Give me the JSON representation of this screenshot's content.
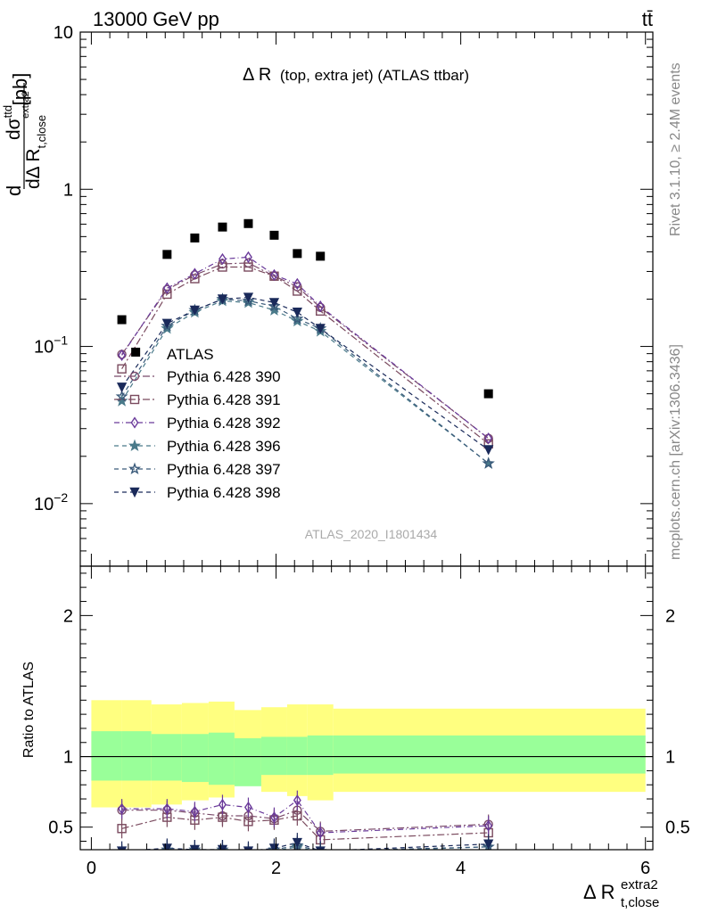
{
  "header": {
    "beam": "13000 GeV pp",
    "process": "tt̄",
    "side_rivet": "Rivet 3.1.10, ≥ 2.4M events",
    "side_mcplots": "mcplots.cern.ch [arXiv:1306.3436]",
    "analysis_id": "ATLAS_2020_I1801434"
  },
  "labels": {
    "title_main": "Δ R",
    "title_paren": "(top, extra jet) (ATLAS ttbar)",
    "ylabel_main": "dσ",
    "ylabel_main_sup": "ttd",
    "ylabel_den": "dΔ R",
    "ylabel_den_sub": "t,close",
    "ylabel_den_sup": "extra2",
    "ylabel_pre": "d",
    "ylabel_unit": "[pb]",
    "ratio_ylabel": "Ratio to ATLAS",
    "xlabel_main": "Δ R",
    "xlabel_sup": "extra2",
    "xlabel_sub": "t,close"
  },
  "ticks": {
    "top_y": [
      "10",
      "1",
      "10",
      "10"
    ],
    "top_y_exp": [
      "",
      "",
      "−1",
      "−2"
    ],
    "ratio_y": [
      "2",
      "1",
      "0.5"
    ],
    "x": [
      "0",
      "2",
      "4",
      "6"
    ]
  },
  "colors": {
    "data": "#000000",
    "band_inner": "#99ff99",
    "band_outer": "#ffff80",
    "s390": "#7a4a6a",
    "s391": "#7a4a5e",
    "s392": "#6a3a9a",
    "s396": "#4a7a8a",
    "s397": "#3a5a7a",
    "s398": "#1a2a5a"
  },
  "chart_data": {
    "type": "scatter",
    "x_scale": "linear",
    "y_scale": "log",
    "xlim": [
      -0.12,
      6.08
    ],
    "ylim": [
      0.004,
      10
    ],
    "ratio_ylim": [
      0.34,
      2.35
    ],
    "grid": false,
    "legend_position": "middle-left",
    "x": [
      0.33,
      0.82,
      1.12,
      1.42,
      1.7,
      1.98,
      2.23,
      2.48,
      4.3
    ],
    "data": {
      "name": "ATLAS",
      "x": [
        0.33,
        0.48,
        0.82,
        1.12,
        1.42,
        1.7,
        1.98,
        2.23,
        2.48,
        4.3
      ],
      "values": [
        0.148,
        0.092,
        0.385,
        0.49,
        0.575,
        0.605,
        0.51,
        0.39,
        0.375,
        0.05
      ]
    },
    "series": [
      {
        "name": "Pythia 6.428 390",
        "marker": "circle-open",
        "dash": "8,3,2,3",
        "color_key": "s390",
        "values": [
          0.089,
          0.23,
          0.285,
          0.335,
          0.34,
          0.28,
          0.24,
          0.177,
          0.026
        ],
        "ratio": [
          0.62,
          0.62,
          0.6,
          0.58,
          0.58,
          0.56,
          0.62,
          0.47,
          0.52
        ]
      },
      {
        "name": "Pythia 6.428 391",
        "marker": "square-open",
        "dash": "8,3,2,3",
        "color_key": "s391",
        "values": [
          0.072,
          0.215,
          0.27,
          0.32,
          0.32,
          0.28,
          0.225,
          0.168,
          0.024
        ],
        "ratio": [
          0.49,
          0.57,
          0.55,
          0.57,
          0.54,
          0.55,
          0.58,
          0.41,
          0.46
        ]
      },
      {
        "name": "Pythia 6.428 392",
        "marker": "diamond-open",
        "dash": "6,3,1,3",
        "color_key": "s392",
        "values": [
          0.088,
          0.235,
          0.29,
          0.36,
          0.37,
          0.285,
          0.25,
          0.18,
          0.026
        ],
        "ratio": [
          0.63,
          0.63,
          0.61,
          0.66,
          0.64,
          0.57,
          0.69,
          0.46,
          0.51
        ]
      },
      {
        "name": "Pythia 6.428 396",
        "marker": "star-filled",
        "dash": "5,4",
        "color_key": "s396",
        "values": [
          0.045,
          0.13,
          0.165,
          0.195,
          0.19,
          0.17,
          0.145,
          0.125,
          0.018
        ],
        "ratio": [
          0.3,
          0.33,
          0.33,
          0.33,
          0.31,
          0.33,
          0.36,
          0.32,
          0.36
        ]
      },
      {
        "name": "Pythia 6.428 397",
        "marker": "star-open",
        "dash": "5,4",
        "color_key": "s397",
        "values": [
          0.048,
          0.135,
          0.17,
          0.2,
          0.195,
          0.18,
          0.15,
          0.13,
          0.018
        ],
        "ratio": [
          0.31,
          0.34,
          0.34,
          0.34,
          0.32,
          0.34,
          0.37,
          0.33,
          0.36
        ]
      },
      {
        "name": "Pythia 6.428 398",
        "marker": "triangle-down-filled",
        "dash": "5,4",
        "color_key": "s398",
        "values": [
          0.055,
          0.14,
          0.17,
          0.2,
          0.205,
          0.19,
          0.165,
          0.13,
          0.022
        ],
        "ratio": [
          0.33,
          0.35,
          0.34,
          0.34,
          0.33,
          0.35,
          0.39,
          0.33,
          0.38
        ]
      }
    ],
    "uncertainty_bands": {
      "edges": [
        0.0,
        0.33,
        0.65,
        0.98,
        1.27,
        1.55,
        1.84,
        2.12,
        2.34,
        2.62,
        6.0
      ],
      "inner_low": [
        0.83,
        0.83,
        0.83,
        0.82,
        0.8,
        0.79,
        0.87,
        0.87,
        0.87,
        0.88
      ],
      "inner_high": [
        1.18,
        1.18,
        1.16,
        1.16,
        1.17,
        1.13,
        1.14,
        1.14,
        1.15,
        1.15
      ],
      "outer_low": [
        0.64,
        0.64,
        0.66,
        0.69,
        0.71,
        0.82,
        0.75,
        0.72,
        0.69,
        0.75
      ],
      "outer_high": [
        1.4,
        1.4,
        1.37,
        1.38,
        1.39,
        1.33,
        1.35,
        1.37,
        1.37,
        1.34
      ]
    }
  }
}
